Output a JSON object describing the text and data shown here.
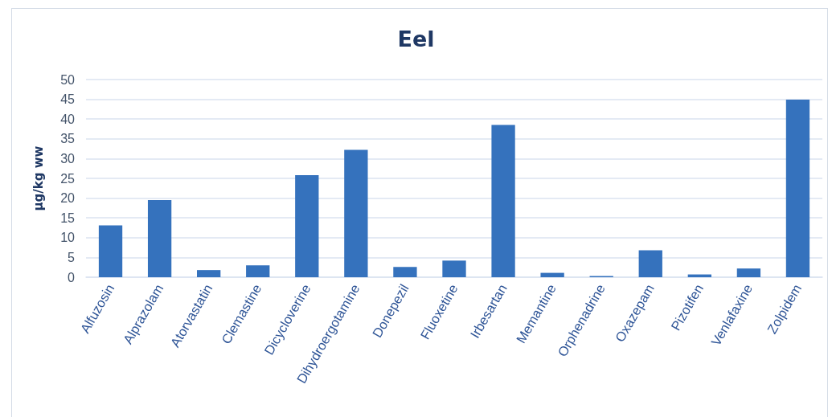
{
  "chart_data": {
    "type": "bar",
    "title": "Eel",
    "ylabel": "µg/kg ww",
    "categories": [
      "Alfuzosin",
      "Alprazolam",
      "Atorvastatin",
      "Clemastine",
      "Dicycloverine",
      "Dihydroergotamine",
      "Donepezil",
      "Fluoxetine",
      "Irbesartan",
      "Memantine",
      "Orphenadrine",
      "Oxazepam",
      "Pizotifen",
      "Venlafaxine",
      "Zolpidem"
    ],
    "values": [
      13.1,
      19.5,
      1.8,
      3.0,
      25.8,
      32.2,
      2.6,
      4.2,
      38.5,
      1.1,
      0.3,
      6.8,
      0.7,
      2.2,
      44.9
    ],
    "color": "#3572bd",
    "ylim": [
      0,
      50
    ],
    "yticks": [
      0,
      5,
      10,
      15,
      20,
      25,
      30,
      35,
      40,
      45,
      50
    ],
    "grid": "y"
  }
}
